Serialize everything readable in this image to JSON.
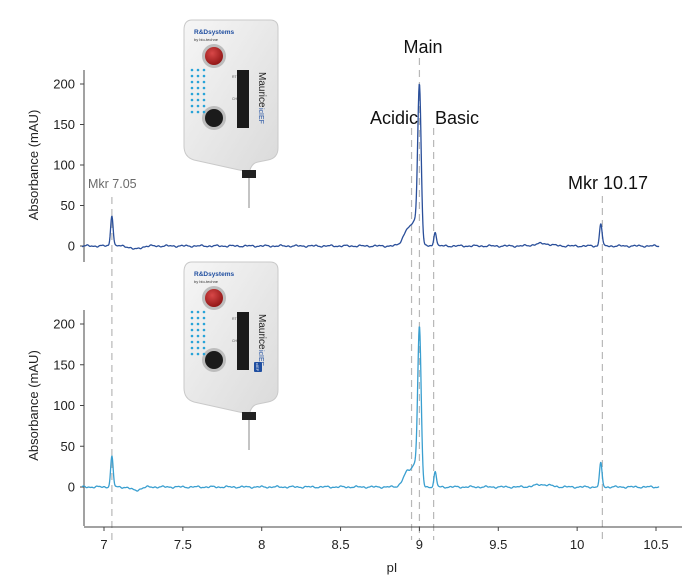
{
  "chart_data": {
    "type": "line",
    "xlabel": "pI",
    "x_ticks": [
      7,
      7.5,
      8,
      8.5,
      9,
      9.5,
      10,
      10.5
    ],
    "xlim": [
      6.85,
      10.6
    ],
    "shared_x_axis": true,
    "panels": [
      {
        "name": "top",
        "ylabel": "Absorbance (mAU)",
        "y_ticks": [
          0,
          50,
          100,
          150,
          200
        ],
        "ylim": [
          -20,
          222
        ],
        "line_color": "#2a4f9a",
        "instrument_badge": false
      },
      {
        "name": "bottom",
        "ylabel": "Absorbance (mAU)",
        "y_ticks": [
          0,
          50,
          100,
          150,
          200
        ],
        "ylim": [
          -45,
          222
        ],
        "line_color": "#3a9fd0",
        "instrument_badge": true
      }
    ],
    "peaks": [
      {
        "x": 7.05,
        "top": 38,
        "bottom": 37,
        "width": 0.008
      },
      {
        "x": 8.93,
        "top": 22,
        "bottom": 20,
        "width": 0.03
      },
      {
        "x": 8.97,
        "top": 20,
        "bottom": 18,
        "width": 0.015
      },
      {
        "x": 9.0,
        "top": 197,
        "bottom": 193,
        "width": 0.011
      },
      {
        "x": 9.1,
        "top": 18,
        "bottom": 18,
        "width": 0.008
      },
      {
        "x": 10.15,
        "top": 28,
        "bottom": 29,
        "width": 0.008
      }
    ],
    "markers": [
      {
        "label": "Mkr 7.05",
        "x": 7.05
      },
      {
        "label": "Acidic",
        "x": 8.95
      },
      {
        "label": "Main",
        "x": 9.0
      },
      {
        "label": "Basic",
        "x": 9.09
      },
      {
        "label": "Mkr 10.17",
        "x": 10.16
      }
    ],
    "grid": false,
    "colors": {
      "axis": "#444444",
      "marker_line": "#b8b8b8",
      "marker_label_small": "#6a6a6a"
    }
  },
  "instrument": {
    "brand": "R&Dsystems",
    "brand_sub": "by bio-techne",
    "model": "Maurice",
    "model_suffix": "icIEF",
    "button_top_label": "RT",
    "button_bottom_label": "CH1",
    "badge": "cIEF"
  }
}
